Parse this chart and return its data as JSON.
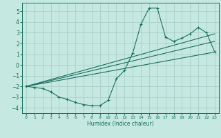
{
  "xlabel": "Humidex (Indice chaleur)",
  "xlim": [
    -0.5,
    23.5
  ],
  "ylim": [
    -4.5,
    5.8
  ],
  "xticks": [
    0,
    1,
    2,
    3,
    4,
    5,
    6,
    7,
    8,
    9,
    10,
    11,
    12,
    13,
    14,
    15,
    16,
    17,
    18,
    19,
    20,
    21,
    22,
    23
  ],
  "yticks": [
    -4,
    -3,
    -2,
    -1,
    0,
    1,
    2,
    3,
    4,
    5
  ],
  "bg_color": "#c5e8e0",
  "line_color": "#1a7060",
  "grid_color": "#a8cfc8",
  "line1_x": [
    0,
    1,
    2,
    3,
    4,
    5,
    6,
    7,
    8,
    9,
    10,
    11,
    12,
    13,
    14,
    15,
    16,
    17,
    18,
    19,
    20,
    21,
    22,
    23
  ],
  "line1_y": [
    -2.0,
    -2.1,
    -2.2,
    -2.5,
    -3.0,
    -3.2,
    -3.5,
    -3.7,
    -3.8,
    -3.8,
    -3.3,
    -1.3,
    -0.5,
    1.1,
    3.8,
    5.3,
    5.3,
    2.6,
    2.2,
    2.5,
    2.9,
    3.5,
    3.0,
    1.2
  ],
  "line2_x": [
    0,
    23
  ],
  "line2_y": [
    -2.0,
    1.2
  ],
  "line3_x": [
    0,
    23
  ],
  "line3_y": [
    -2.0,
    2.2
  ],
  "line4_x": [
    0,
    23
  ],
  "line4_y": [
    -2.0,
    2.9
  ]
}
